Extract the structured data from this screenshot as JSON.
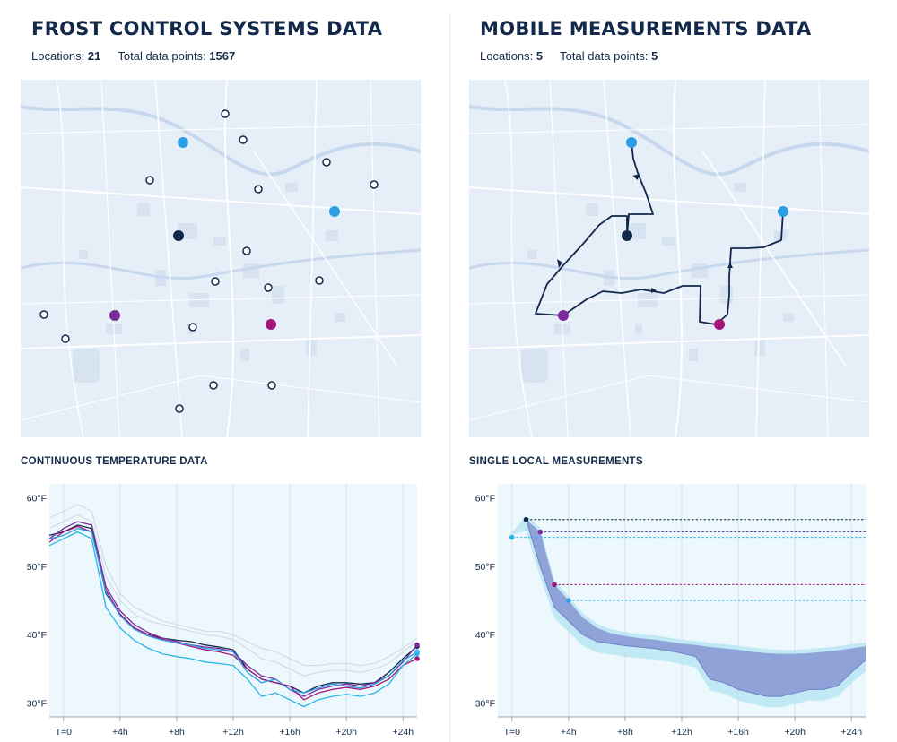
{
  "colors": {
    "navy": "#13294b",
    "blue": "#2b9fe6",
    "lightblue": "#29b5e8",
    "purple": "#7d2a9c",
    "magenta": "#a3167a",
    "plot_bg": "#ecf8fb",
    "map_bg": "#e6eef8",
    "band_fill": "#8796d4"
  },
  "left": {
    "title": "FROST CONTROL SYSTEMS DATA",
    "locations_label": "Locations:",
    "locations_value": "21",
    "points_label": "Total data points:",
    "points_value": "1567",
    "subtitle": "CONTINUOUS TEMPERATURE DATA",
    "legend_markers": [
      {
        "name": "frost-location-marker",
        "count": 16,
        "style": "hollow"
      },
      {
        "name": "highlight-marker",
        "colors": [
          "blue",
          "blue",
          "navy",
          "purple",
          "magenta"
        ]
      }
    ]
  },
  "right": {
    "title": "MOBILE MEASUREMENTS DATA",
    "locations_label": "Locations:",
    "locations_value": "5",
    "points_label": "Total data points:",
    "points_value": "5",
    "subtitle": "SINGLE LOCAL MEASUREMENTS"
  },
  "chart_data": [
    {
      "type": "line",
      "title": "CONTINUOUS TEMPERATURE DATA",
      "x_tick_labels": [
        "T=0",
        "+4h",
        "+8h",
        "+12h",
        "+16h",
        "+20h",
        "+24h"
      ],
      "y_tick_labels": [
        "60°F",
        "50°F",
        "40°F",
        "30°F"
      ],
      "ylim": [
        28,
        62
      ],
      "xlim": [
        -1,
        25
      ],
      "grid": true,
      "x": [
        -1,
        0,
        1,
        2,
        3,
        4,
        5,
        6,
        7,
        8,
        9,
        10,
        11,
        12,
        13,
        14,
        15,
        16,
        17,
        18,
        19,
        20,
        21,
        22,
        23,
        24,
        25
      ],
      "series": [
        {
          "color": "navy",
          "values": [
            54.5,
            55,
            56,
            55.5,
            46,
            43,
            41,
            40,
            39.5,
            39.2,
            39,
            38.5,
            38.2,
            37.8,
            35,
            33.5,
            33,
            32.5,
            31.5,
            32.5,
            33,
            33,
            32.8,
            33,
            34.5,
            36.5,
            38.3
          ]
        },
        {
          "color": "purple",
          "values": [
            54,
            55.5,
            56.5,
            56,
            47,
            43.5,
            41.5,
            40.3,
            39.5,
            39,
            38.5,
            38.2,
            38,
            37.5,
            35.5,
            34,
            33.5,
            32,
            31,
            32,
            32.5,
            32.8,
            32.5,
            33,
            34,
            36,
            38.5
          ]
        },
        {
          "color": "magenta",
          "values": [
            53.5,
            55,
            55.8,
            55,
            46.5,
            43,
            41,
            40,
            39.3,
            38.8,
            38.3,
            37.8,
            37.5,
            37,
            35,
            33.5,
            33,
            32.5,
            30.5,
            31.5,
            32,
            32.3,
            32,
            32.5,
            33.5,
            35.5,
            36.5
          ]
        },
        {
          "color": "blue",
          "values": [
            54,
            54.5,
            55.5,
            55,
            46.2,
            42.8,
            40.8,
            39.8,
            39.2,
            38.8,
            38.5,
            38,
            37.8,
            37.5,
            34.5,
            33,
            33.5,
            32,
            31.5,
            32.2,
            32.8,
            32.5,
            32.2,
            32.8,
            34,
            36.2,
            37.5
          ]
        },
        {
          "color": "lightblue",
          "values": [
            53,
            54,
            55,
            54,
            44,
            41,
            39.2,
            38,
            37.2,
            36.8,
            36.5,
            36,
            35.8,
            35.5,
            33.5,
            31,
            31.5,
            30.5,
            29.5,
            30.5,
            31,
            31.3,
            31,
            31.5,
            32.8,
            35.5,
            37.2
          ]
        },
        {
          "color": "faint",
          "values": [
            57,
            58,
            59,
            58,
            50,
            46,
            44,
            43,
            42,
            41.5,
            41,
            40.5,
            40.5,
            40,
            39,
            38,
            37.5,
            36.5,
            35.5,
            35.5,
            35.8,
            35.8,
            35.5,
            35.8,
            36.8,
            38,
            39.5
          ]
        },
        {
          "color": "faint",
          "values": [
            55.5,
            56.5,
            57.5,
            56.5,
            48.5,
            45,
            43,
            42,
            41.5,
            41,
            40.5,
            40,
            39.8,
            39.3,
            38,
            36.5,
            36,
            35,
            34,
            34.5,
            34.8,
            34.8,
            34.5,
            35,
            35.8,
            37.5,
            39
          ]
        }
      ]
    },
    {
      "type": "area",
      "title": "SINGLE LOCAL MEASUREMENTS",
      "x_tick_labels": [
        "T=0",
        "+4h",
        "+8h",
        "+12h",
        "+16h",
        "+20h",
        "+24h"
      ],
      "y_tick_labels": [
        "60°F",
        "50°F",
        "40°F",
        "30°F"
      ],
      "ylim": [
        28,
        62
      ],
      "xlim": [
        -1,
        25
      ],
      "grid": true,
      "measurements": [
        {
          "color": "navy",
          "x": 1,
          "value": 56.8
        },
        {
          "color": "purple",
          "x": 2,
          "value": 55
        },
        {
          "color": "lightblue",
          "x": 0,
          "value": 54.2
        },
        {
          "color": "magenta",
          "x": 3,
          "value": 47.3
        },
        {
          "color": "blue",
          "x": 4,
          "value": 45
        }
      ],
      "band_upper_x": [
        1,
        2,
        3,
        4,
        5,
        6,
        7,
        8,
        9,
        10,
        11,
        12,
        13,
        14,
        15,
        16,
        17,
        18,
        19,
        20,
        21,
        22,
        23,
        24,
        25
      ],
      "band_upper": [
        56.8,
        55,
        47.3,
        45,
        42.5,
        41,
        40.2,
        39.8,
        39.5,
        39.3,
        39,
        38.7,
        38.5,
        38.2,
        38,
        37.8,
        37.5,
        37.3,
        37.2,
        37.2,
        37.3,
        37.5,
        37.7,
        38,
        38.3
      ],
      "band_lower": [
        56.8,
        50,
        44,
        42,
        40,
        39,
        38.7,
        38.4,
        38.2,
        38,
        37.7,
        37.3,
        36.8,
        33.5,
        33,
        32,
        31.5,
        31,
        31,
        31.5,
        32,
        32,
        32.5,
        34.5,
        36.3
      ]
    }
  ]
}
